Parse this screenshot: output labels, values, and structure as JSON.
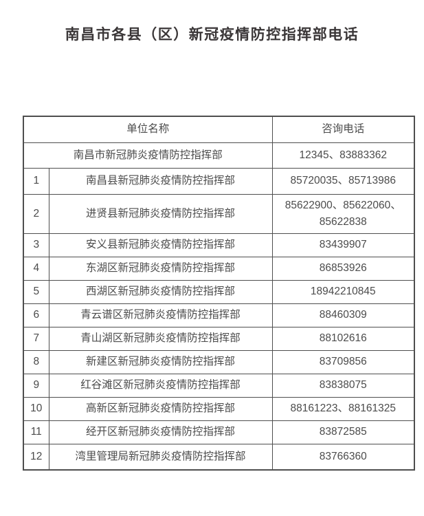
{
  "page": {
    "title": "南昌市各县（区）新冠疫情防控指挥部电话"
  },
  "colors": {
    "title_text": "#3a3637",
    "table_text": "#4b4b4b",
    "table_border": "#4e4e4e",
    "background": "#ffffff"
  },
  "table": {
    "headers": {
      "unit": "单位名称",
      "phone": "咨询电话"
    },
    "city_row": {
      "unit": "南昌市新冠肺炎疫情防控指挥部",
      "phone": "12345、83883362"
    },
    "rows": [
      {
        "no": "1",
        "unit": "南昌县新冠肺炎疫情防控指挥部",
        "phone": "85720035、85713986"
      },
      {
        "no": "2",
        "unit": "进贤县新冠肺炎疫情防控指挥部",
        "phone": "85622900、85622060、85622838"
      },
      {
        "no": "3",
        "unit": "安义县新冠肺炎疫情防控指挥部",
        "phone": "83439907"
      },
      {
        "no": "4",
        "unit": "东湖区新冠肺炎疫情防控指挥部",
        "phone": "86853926"
      },
      {
        "no": "5",
        "unit": "西湖区新冠肺炎疫情防控指挥部",
        "phone": "18942210845"
      },
      {
        "no": "6",
        "unit": "青云谱区新冠肺炎疫情防控指挥部",
        "phone": "88460309"
      },
      {
        "no": "7",
        "unit": "青山湖区新冠肺炎疫情防控指挥部",
        "phone": "88102616"
      },
      {
        "no": "8",
        "unit": "新建区新冠肺炎疫情防控指挥部",
        "phone": "83709856"
      },
      {
        "no": "9",
        "unit": "红谷滩区新冠肺炎疫情防控指挥部",
        "phone": "83838075"
      },
      {
        "no": "10",
        "unit": "高新区新冠肺炎疫情防控指挥部",
        "phone": "88161223、88161325"
      },
      {
        "no": "11",
        "unit": "经开区新冠肺炎疫情防控指挥部",
        "phone": "83872585"
      },
      {
        "no": "12",
        "unit": "湾里管理局新冠肺炎疫情防控指挥部",
        "phone": "83766360"
      }
    ]
  }
}
